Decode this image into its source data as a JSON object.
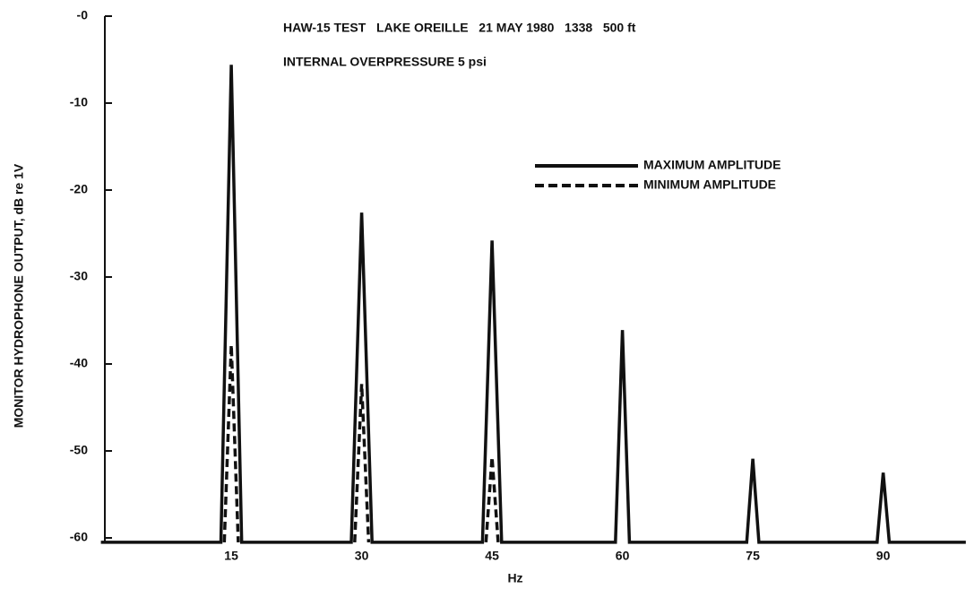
{
  "chart_data": {
    "type": "line",
    "title": "HAW-15 TEST   LAKE OREILLE   21 MAY 1980   1338   500 ft",
    "subtitle": "INTERNAL OVERPRESSURE 5 psi",
    "x_label": "Hz",
    "y_label": "MONITOR HYDROPHONE OUTPUT, dB re 1V",
    "xlim": [
      0,
      99.5
    ],
    "ylim": [
      -61,
      0
    ],
    "xticks": [
      15,
      30,
      45,
      60,
      75,
      90
    ],
    "yticks": [
      {
        "value": 0,
        "label": "-0"
      },
      -10,
      -20,
      -30,
      -40,
      -50,
      -60
    ],
    "legend": "upper right",
    "series": [
      {
        "name": "MAXIMUM AMPLITUDE",
        "color": "#111111",
        "style": "solid",
        "x": [
          0,
          13.8,
          15,
          16.2,
          28.8,
          30,
          31.2,
          43.9,
          45,
          46.1,
          59.2,
          60,
          60.8,
          74.3,
          75,
          75.7,
          89.3,
          90,
          90.7,
          99.5
        ],
        "values": [
          -60.5,
          -60.5,
          -5.6,
          -60.5,
          -60.5,
          -22.6,
          -60.5,
          -60.5,
          -25.8,
          -60.5,
          -60.5,
          -36.1,
          -60.5,
          -60.5,
          -50.9,
          -60.5,
          -60.5,
          -52.5,
          -60.5,
          -60.5
        ]
      },
      {
        "name": "MINIMUM AMPLITUDE",
        "color": "#111111",
        "style": "dashed",
        "x": [
          14.2,
          15,
          15.8,
          null,
          29.2,
          30,
          30.8,
          null,
          44.3,
          45,
          45.7
        ],
        "values": [
          -60.5,
          -37.8,
          -60.5,
          null,
          -60.5,
          -42.3,
          -60.5,
          null,
          -60.5,
          -50.7,
          -60.5
        ]
      }
    ]
  }
}
